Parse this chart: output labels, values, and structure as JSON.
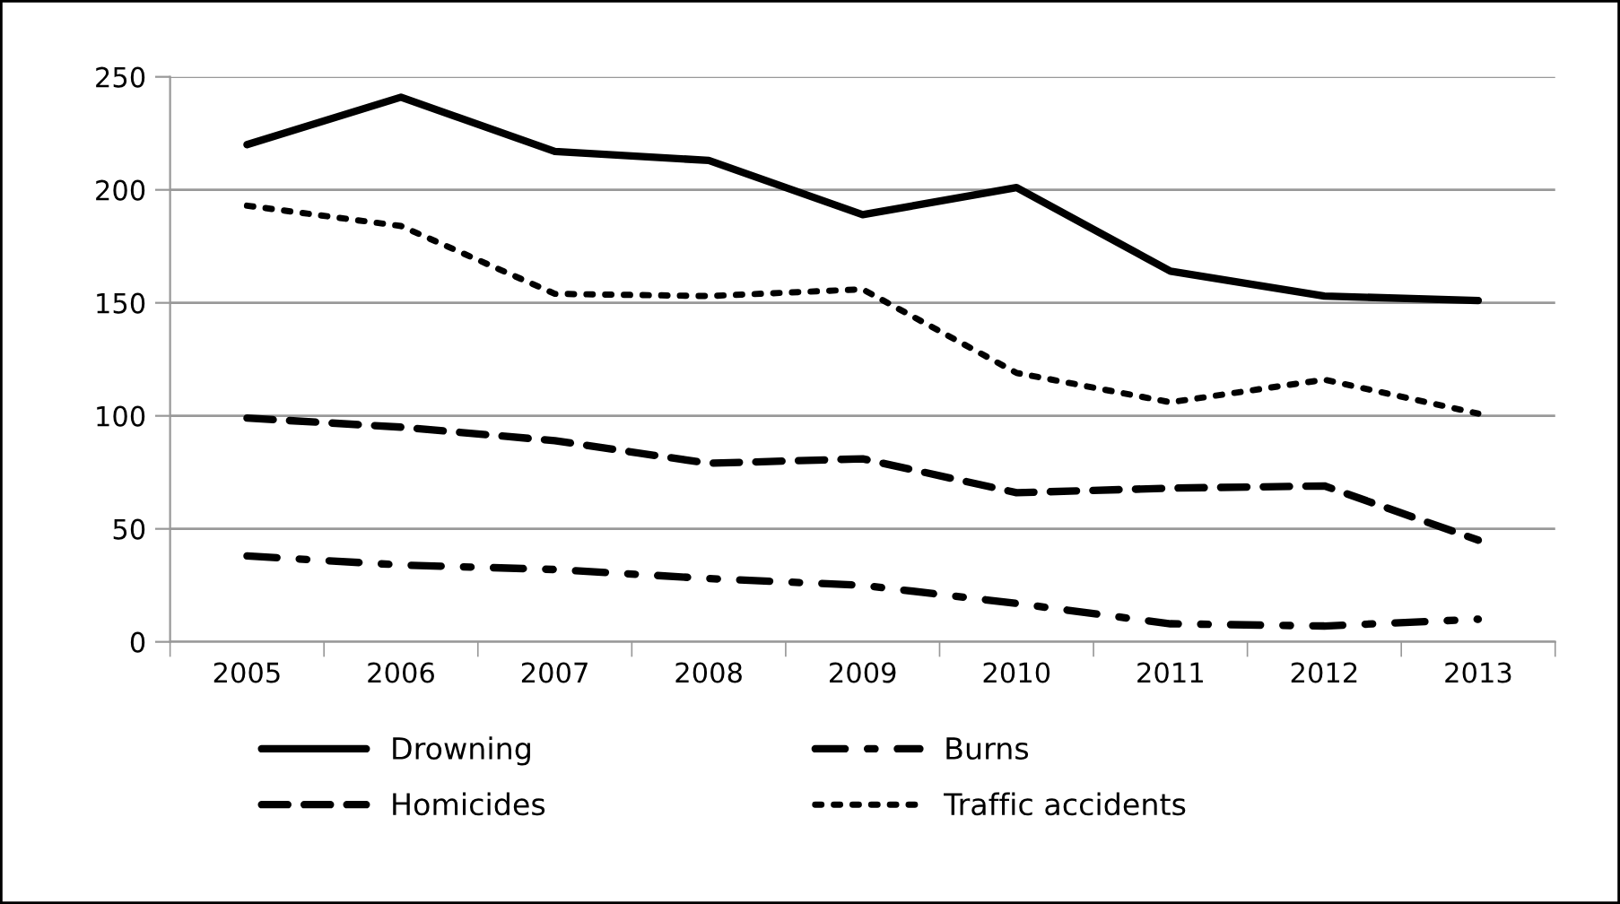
{
  "chart_data": {
    "type": "line",
    "categories": [
      "2005",
      "2006",
      "2007",
      "2008",
      "2009",
      "2010",
      "2011",
      "2012",
      "2013"
    ],
    "series": [
      {
        "name": "Drowning",
        "color": "#000000",
        "line_style": "solid",
        "values": [
          220,
          241,
          217,
          213,
          189,
          201,
          164,
          153,
          151
        ]
      },
      {
        "name": "Homicides",
        "color": "#000000",
        "line_style": "dashed",
        "values": [
          99,
          95,
          89,
          79,
          81,
          66,
          68,
          69,
          45
        ]
      },
      {
        "name": "Burns",
        "color": "#000000",
        "line_style": "dashdot",
        "values": [
          38,
          34,
          32,
          28,
          25,
          17,
          8,
          7,
          10
        ]
      },
      {
        "name": "Traffic accidents",
        "color": "#000000",
        "line_style": "dotted",
        "values": [
          193,
          184,
          154,
          153,
          156,
          119,
          106,
          116,
          101
        ]
      }
    ],
    "ylim": [
      0,
      250
    ],
    "yticks": [
      0,
      50,
      100,
      150,
      200,
      250
    ],
    "grid": "y",
    "legend": "bottom",
    "marker": "none"
  }
}
